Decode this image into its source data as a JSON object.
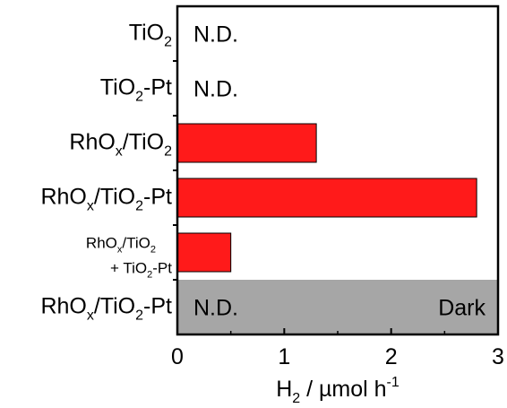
{
  "chart_data": {
    "type": "bar",
    "orientation": "horizontal",
    "categories": [
      {
        "base": "TiO",
        "sub1": "2",
        "rest": "",
        "sub2": "",
        "tail": ""
      },
      {
        "base": "TiO",
        "sub1": "2",
        "rest": "-Pt",
        "sub2": "",
        "tail": ""
      },
      {
        "base": "RhO",
        "sub1": "x",
        "rest": "/TiO",
        "sub2": "2",
        "tail": ""
      },
      {
        "base": "RhO",
        "sub1": "x",
        "rest": "/TiO",
        "sub2": "2",
        "tail": "-Pt"
      },
      {
        "line1": {
          "base": "RhO",
          "sub1": "x",
          "rest": "/TiO",
          "sub2": "2"
        },
        "line2": {
          "base": "+ TiO",
          "sub1": "2",
          "rest": "-Pt"
        }
      },
      {
        "base": "RhO",
        "sub1": "x",
        "rest": "/TiO",
        "sub2": "2",
        "tail": "-Pt"
      }
    ],
    "values": [
      0,
      0,
      1.3,
      2.8,
      0.5,
      0
    ],
    "annotations": [
      "N.D.",
      "N.D.",
      "",
      "",
      "",
      "N.D."
    ],
    "shaded_condition": {
      "row": 5,
      "label": "Dark",
      "color": "#a6a6a6"
    },
    "bar_color": "#ff1a1a",
    "xlabel": {
      "base": "H",
      "sub": "2",
      "rest": " / µmol h",
      "sup": "-1"
    },
    "xticks": [
      "0",
      "1",
      "2",
      "3"
    ],
    "xlim": [
      0,
      3
    ]
  }
}
